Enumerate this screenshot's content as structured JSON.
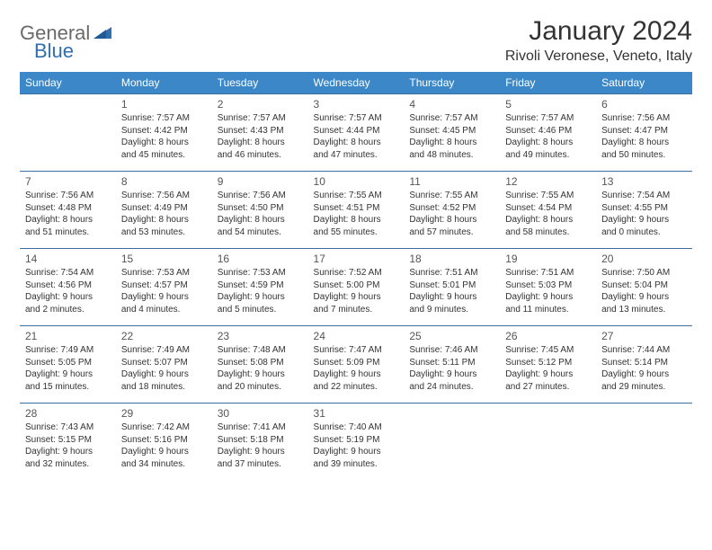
{
  "logo": {
    "part1": "General",
    "part2": "Blue"
  },
  "title": "January 2024",
  "location": "Rivoli Veronese, Veneto, Italy",
  "colors": {
    "header_bg": "#3b87c8",
    "header_text": "#ffffff",
    "border": "#3b6fa0",
    "logo_gray": "#6a6a6a",
    "logo_blue": "#2f6fb0",
    "body_text": "#333333"
  },
  "weekdays": [
    "Sunday",
    "Monday",
    "Tuesday",
    "Wednesday",
    "Thursday",
    "Friday",
    "Saturday"
  ],
  "weeks": [
    [
      null,
      {
        "d": "1",
        "sr": "Sunrise: 7:57 AM",
        "ss": "Sunset: 4:42 PM",
        "dl1": "Daylight: 8 hours",
        "dl2": "and 45 minutes."
      },
      {
        "d": "2",
        "sr": "Sunrise: 7:57 AM",
        "ss": "Sunset: 4:43 PM",
        "dl1": "Daylight: 8 hours",
        "dl2": "and 46 minutes."
      },
      {
        "d": "3",
        "sr": "Sunrise: 7:57 AM",
        "ss": "Sunset: 4:44 PM",
        "dl1": "Daylight: 8 hours",
        "dl2": "and 47 minutes."
      },
      {
        "d": "4",
        "sr": "Sunrise: 7:57 AM",
        "ss": "Sunset: 4:45 PM",
        "dl1": "Daylight: 8 hours",
        "dl2": "and 48 minutes."
      },
      {
        "d": "5",
        "sr": "Sunrise: 7:57 AM",
        "ss": "Sunset: 4:46 PM",
        "dl1": "Daylight: 8 hours",
        "dl2": "and 49 minutes."
      },
      {
        "d": "6",
        "sr": "Sunrise: 7:56 AM",
        "ss": "Sunset: 4:47 PM",
        "dl1": "Daylight: 8 hours",
        "dl2": "and 50 minutes."
      }
    ],
    [
      {
        "d": "7",
        "sr": "Sunrise: 7:56 AM",
        "ss": "Sunset: 4:48 PM",
        "dl1": "Daylight: 8 hours",
        "dl2": "and 51 minutes."
      },
      {
        "d": "8",
        "sr": "Sunrise: 7:56 AM",
        "ss": "Sunset: 4:49 PM",
        "dl1": "Daylight: 8 hours",
        "dl2": "and 53 minutes."
      },
      {
        "d": "9",
        "sr": "Sunrise: 7:56 AM",
        "ss": "Sunset: 4:50 PM",
        "dl1": "Daylight: 8 hours",
        "dl2": "and 54 minutes."
      },
      {
        "d": "10",
        "sr": "Sunrise: 7:55 AM",
        "ss": "Sunset: 4:51 PM",
        "dl1": "Daylight: 8 hours",
        "dl2": "and 55 minutes."
      },
      {
        "d": "11",
        "sr": "Sunrise: 7:55 AM",
        "ss": "Sunset: 4:52 PM",
        "dl1": "Daylight: 8 hours",
        "dl2": "and 57 minutes."
      },
      {
        "d": "12",
        "sr": "Sunrise: 7:55 AM",
        "ss": "Sunset: 4:54 PM",
        "dl1": "Daylight: 8 hours",
        "dl2": "and 58 minutes."
      },
      {
        "d": "13",
        "sr": "Sunrise: 7:54 AM",
        "ss": "Sunset: 4:55 PM",
        "dl1": "Daylight: 9 hours",
        "dl2": "and 0 minutes."
      }
    ],
    [
      {
        "d": "14",
        "sr": "Sunrise: 7:54 AM",
        "ss": "Sunset: 4:56 PM",
        "dl1": "Daylight: 9 hours",
        "dl2": "and 2 minutes."
      },
      {
        "d": "15",
        "sr": "Sunrise: 7:53 AM",
        "ss": "Sunset: 4:57 PM",
        "dl1": "Daylight: 9 hours",
        "dl2": "and 4 minutes."
      },
      {
        "d": "16",
        "sr": "Sunrise: 7:53 AM",
        "ss": "Sunset: 4:59 PM",
        "dl1": "Daylight: 9 hours",
        "dl2": "and 5 minutes."
      },
      {
        "d": "17",
        "sr": "Sunrise: 7:52 AM",
        "ss": "Sunset: 5:00 PM",
        "dl1": "Daylight: 9 hours",
        "dl2": "and 7 minutes."
      },
      {
        "d": "18",
        "sr": "Sunrise: 7:51 AM",
        "ss": "Sunset: 5:01 PM",
        "dl1": "Daylight: 9 hours",
        "dl2": "and 9 minutes."
      },
      {
        "d": "19",
        "sr": "Sunrise: 7:51 AM",
        "ss": "Sunset: 5:03 PM",
        "dl1": "Daylight: 9 hours",
        "dl2": "and 11 minutes."
      },
      {
        "d": "20",
        "sr": "Sunrise: 7:50 AM",
        "ss": "Sunset: 5:04 PM",
        "dl1": "Daylight: 9 hours",
        "dl2": "and 13 minutes."
      }
    ],
    [
      {
        "d": "21",
        "sr": "Sunrise: 7:49 AM",
        "ss": "Sunset: 5:05 PM",
        "dl1": "Daylight: 9 hours",
        "dl2": "and 15 minutes."
      },
      {
        "d": "22",
        "sr": "Sunrise: 7:49 AM",
        "ss": "Sunset: 5:07 PM",
        "dl1": "Daylight: 9 hours",
        "dl2": "and 18 minutes."
      },
      {
        "d": "23",
        "sr": "Sunrise: 7:48 AM",
        "ss": "Sunset: 5:08 PM",
        "dl1": "Daylight: 9 hours",
        "dl2": "and 20 minutes."
      },
      {
        "d": "24",
        "sr": "Sunrise: 7:47 AM",
        "ss": "Sunset: 5:09 PM",
        "dl1": "Daylight: 9 hours",
        "dl2": "and 22 minutes."
      },
      {
        "d": "25",
        "sr": "Sunrise: 7:46 AM",
        "ss": "Sunset: 5:11 PM",
        "dl1": "Daylight: 9 hours",
        "dl2": "and 24 minutes."
      },
      {
        "d": "26",
        "sr": "Sunrise: 7:45 AM",
        "ss": "Sunset: 5:12 PM",
        "dl1": "Daylight: 9 hours",
        "dl2": "and 27 minutes."
      },
      {
        "d": "27",
        "sr": "Sunrise: 7:44 AM",
        "ss": "Sunset: 5:14 PM",
        "dl1": "Daylight: 9 hours",
        "dl2": "and 29 minutes."
      }
    ],
    [
      {
        "d": "28",
        "sr": "Sunrise: 7:43 AM",
        "ss": "Sunset: 5:15 PM",
        "dl1": "Daylight: 9 hours",
        "dl2": "and 32 minutes."
      },
      {
        "d": "29",
        "sr": "Sunrise: 7:42 AM",
        "ss": "Sunset: 5:16 PM",
        "dl1": "Daylight: 9 hours",
        "dl2": "and 34 minutes."
      },
      {
        "d": "30",
        "sr": "Sunrise: 7:41 AM",
        "ss": "Sunset: 5:18 PM",
        "dl1": "Daylight: 9 hours",
        "dl2": "and 37 minutes."
      },
      {
        "d": "31",
        "sr": "Sunrise: 7:40 AM",
        "ss": "Sunset: 5:19 PM",
        "dl1": "Daylight: 9 hours",
        "dl2": "and 39 minutes."
      },
      null,
      null,
      null
    ]
  ]
}
